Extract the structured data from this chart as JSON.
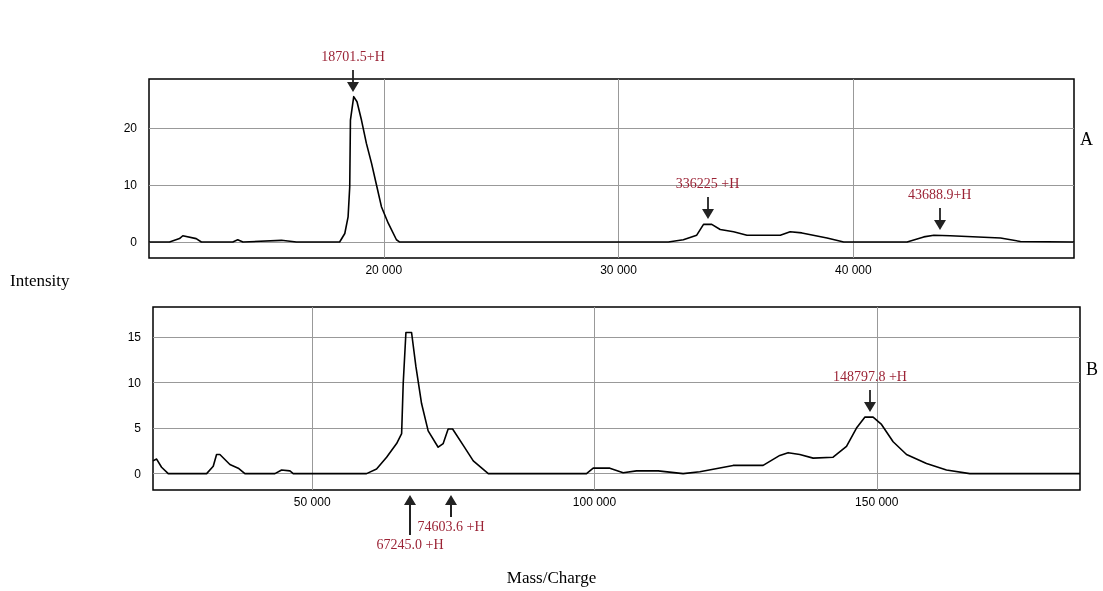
{
  "chart_data": [
    {
      "type": "line",
      "ylabel": "Intensity",
      "xlim": [
        10000,
        49400
      ],
      "ylim": [
        -2.8,
        28.6
      ],
      "xticks": [
        {
          "value": 20000,
          "label": "20 000"
        },
        {
          "value": 30000,
          "label": "30 000"
        },
        {
          "value": 40000,
          "label": "40 000"
        }
      ],
      "yticks": [
        0,
        10,
        20
      ],
      "grid": true,
      "marker": "none",
      "line_style": "solid",
      "series": [
        {
          "color": "#000000",
          "x": [
            10000,
            10875,
            11300,
            11440,
            12010,
            12230,
            13570,
            13780,
            14000,
            15640,
            16280,
            18120,
            18340,
            18480,
            18550,
            18580,
            18720,
            18860,
            19050,
            19260,
            19480,
            19690,
            19900,
            20190,
            20540,
            20680,
            32120,
            32760,
            33330,
            33620,
            33970,
            34330,
            34900,
            35470,
            36890,
            37310,
            37810,
            38880,
            39590,
            42290,
            43000,
            43430,
            44130,
            46270,
            47120,
            49400
          ],
          "values": [
            0,
            0,
            0.6,
            1.1,
            0.6,
            0,
            0,
            0.4,
            0,
            0.3,
            0,
            0,
            1.5,
            4.4,
            9.7,
            21.4,
            25.5,
            24.6,
            21.4,
            17.3,
            13.8,
            10,
            6.2,
            3.3,
            0.4,
            0,
            0,
            0.4,
            1.2,
            3.1,
            3.1,
            2.2,
            1.8,
            1.2,
            1.2,
            1.8,
            1.6,
            0.7,
            0,
            0,
            0.9,
            1.2,
            1.1,
            0.7,
            0.1,
            0
          ]
        }
      ],
      "annotations": [
        {
          "text": "18701.5+H",
          "x": 18701.5,
          "y": 25.5
        },
        {
          "text": "336225 +H",
          "x": 33800,
          "y": 3.1
        },
        {
          "text": "43688.9+H",
          "x": 43688.9,
          "y": 1.2
        },
        "A"
      ]
    },
    {
      "type": "line",
      "xlabel": "Mass/Charge",
      "xlim": [
        21800,
        186000
      ],
      "ylim": [
        -1.8,
        18.3
      ],
      "xticks": [
        {
          "value": 50000,
          "label": "50 000"
        },
        {
          "value": 100000,
          "label": "100 000"
        },
        {
          "value": 150000,
          "label": "150 000"
        }
      ],
      "yticks": [
        0,
        5,
        10,
        15
      ],
      "grid": true,
      "marker": "none",
      "line_style": "solid",
      "series": [
        {
          "color": "#000000",
          "x": [
            21800,
            22440,
            23320,
            24500,
            31300,
            32470,
            33060,
            33650,
            35420,
            36900,
            38080,
            43400,
            44580,
            46050,
            46640,
            59630,
            61400,
            63180,
            64950,
            65840,
            66120,
            66600,
            67600,
            68360,
            69370,
            70540,
            72310,
            73200,
            74080,
            74870,
            76760,
            78530,
            81190,
            98590,
            99770,
            102720,
            105080,
            107450,
            111280,
            115700,
            118660,
            124560,
            129870,
            132830,
            134300,
            136370,
            138730,
            142270,
            144640,
            146410,
            147880,
            149350,
            150840,
            152900,
            155270,
            158810,
            162350,
            166480,
            186000
          ],
          "values": [
            1.4,
            1.6,
            0.7,
            0,
            0,
            0.8,
            2.1,
            2.1,
            1,
            0.6,
            0,
            0,
            0.4,
            0.3,
            0,
            0,
            0.5,
            1.8,
            3.3,
            4.4,
            9.9,
            15.5,
            15.5,
            11.8,
            7.7,
            4.7,
            2.9,
            3.3,
            4.9,
            4.9,
            3.1,
            1.4,
            0,
            0,
            0.6,
            0.6,
            0.1,
            0.3,
            0.3,
            0,
            0.2,
            0.9,
            0.9,
            2,
            2.3,
            2.1,
            1.7,
            1.8,
            3,
            5,
            6.2,
            6.2,
            5.4,
            3.5,
            2.1,
            1.1,
            0.4,
            0,
            0
          ]
        }
      ],
      "annotations": [
        "67245.0 +H",
        "74603.6 +H",
        {
          "text": "148797.8 +H",
          "x": 148797.8,
          "y": 6.2
        },
        "B"
      ]
    }
  ]
}
